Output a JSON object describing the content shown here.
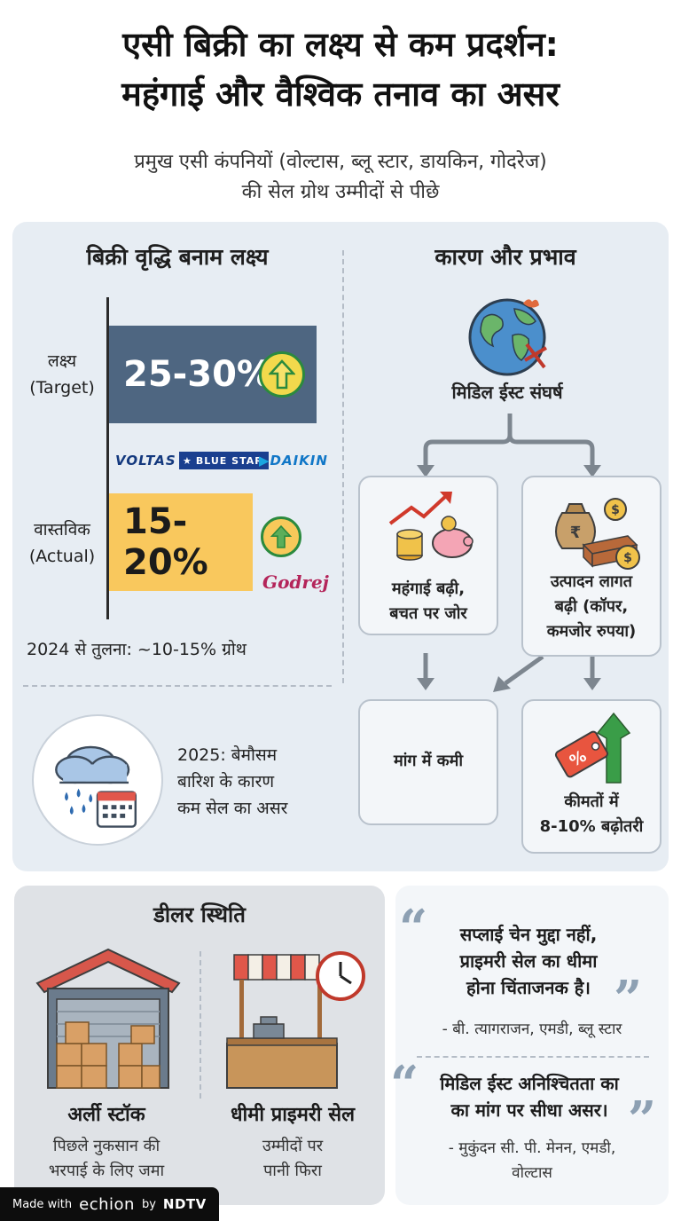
{
  "title": {
    "line1": "एसी बिक्री का लक्ष्य से कम प्रदर्शन:",
    "line2": "महंगाई और वैश्विक तनाव का असर"
  },
  "subtitle": {
    "line1": "प्रमुख एसी कंपनियों (वोल्टास, ब्लू स्टार, डायकिन, गोदरेज)",
    "line2": "की सेल ग्रोथ उम्मीदों से पीछे"
  },
  "growth": {
    "heading": "बिक्री वृद्धि बनाम लक्ष्य",
    "target_label_1": "लक्ष्य",
    "target_label_2": "(Target)",
    "target_value": "25-30%",
    "actual_label_1": "वास्तविक",
    "actual_label_2": "(Actual)",
    "actual_value": "15-20%",
    "logos": {
      "voltas": "VOLTAS",
      "bluestar": "BLUE STAR",
      "daikin": "DAIKIN",
      "godrej": "Godrej"
    },
    "comparison": "2024 से तुलना: ~10-15% ग्रोथ",
    "weather_1": "2025: बेमौसम",
    "weather_2": "बारिश के कारण",
    "weather_3": "कम सेल का असर"
  },
  "causes": {
    "heading": "कारण और प्रभाव",
    "root": "मिडिल ईस्ट संघर्ष",
    "inflation_1": "महंगाई बढ़ी,",
    "inflation_2": "बचत पर जोर",
    "cost_1": "उत्पादन लागत",
    "cost_2": "बढ़ी (कॉपर,",
    "cost_3": "कमजोर रुपया)",
    "demand": "मांग में कमी",
    "price_1": "कीमतों में",
    "price_2": "8-10% बढ़ोतरी",
    "price_tag_symbol": "%",
    "rupee_symbol": "₹",
    "dollar_symbol": "$"
  },
  "dealer": {
    "heading": "डीलर स्थिति",
    "early_stock_title": "अर्ली स्टॉक",
    "early_stock_1": "पिछले नुकसान की",
    "early_stock_2": "भरपाई के लिए जमा",
    "slow_sales_title": "धीमी प्राइमरी सेल",
    "slow_sales_1": "उम्मीदों पर",
    "slow_sales_2": "पानी फिरा"
  },
  "quotes": {
    "q1_1": "सप्लाई चेन मुद्दा नहीं,",
    "q1_2": "प्राइमरी सेल का धीमा",
    "q1_3": "होना चिंताजनक है।",
    "q1_author": "- बी. त्यागराजन, एमडी, ब्लू स्टार",
    "q2_1": "मिडिल ईस्ट अनिश्चितता का",
    "q2_2": "का मांग पर सीधा असर।",
    "q2_author_1": "- मुकुंदन सी. पी. मेनन, एमडी,",
    "q2_author_2": "वोल्टास",
    "open_mark": "“",
    "close_mark": "”"
  },
  "footer": {
    "made_with": "Made with",
    "brand": "echion",
    "by": "by",
    "partner": "NDTV"
  },
  "colors": {
    "target_bar": "#4e6681",
    "actual_bar": "#f9c85d",
    "panel": "#e7edf3",
    "arrow_green": "#2b8a3e"
  },
  "icons": [
    "up-arrow-icon",
    "globe-icon",
    "rain-cloud-icon",
    "calendar-icon",
    "piggy-bank-icon",
    "coins-icon",
    "money-bag-icon",
    "price-tag-icon",
    "warehouse-icon",
    "shop-stall-icon",
    "clock-icon"
  ]
}
